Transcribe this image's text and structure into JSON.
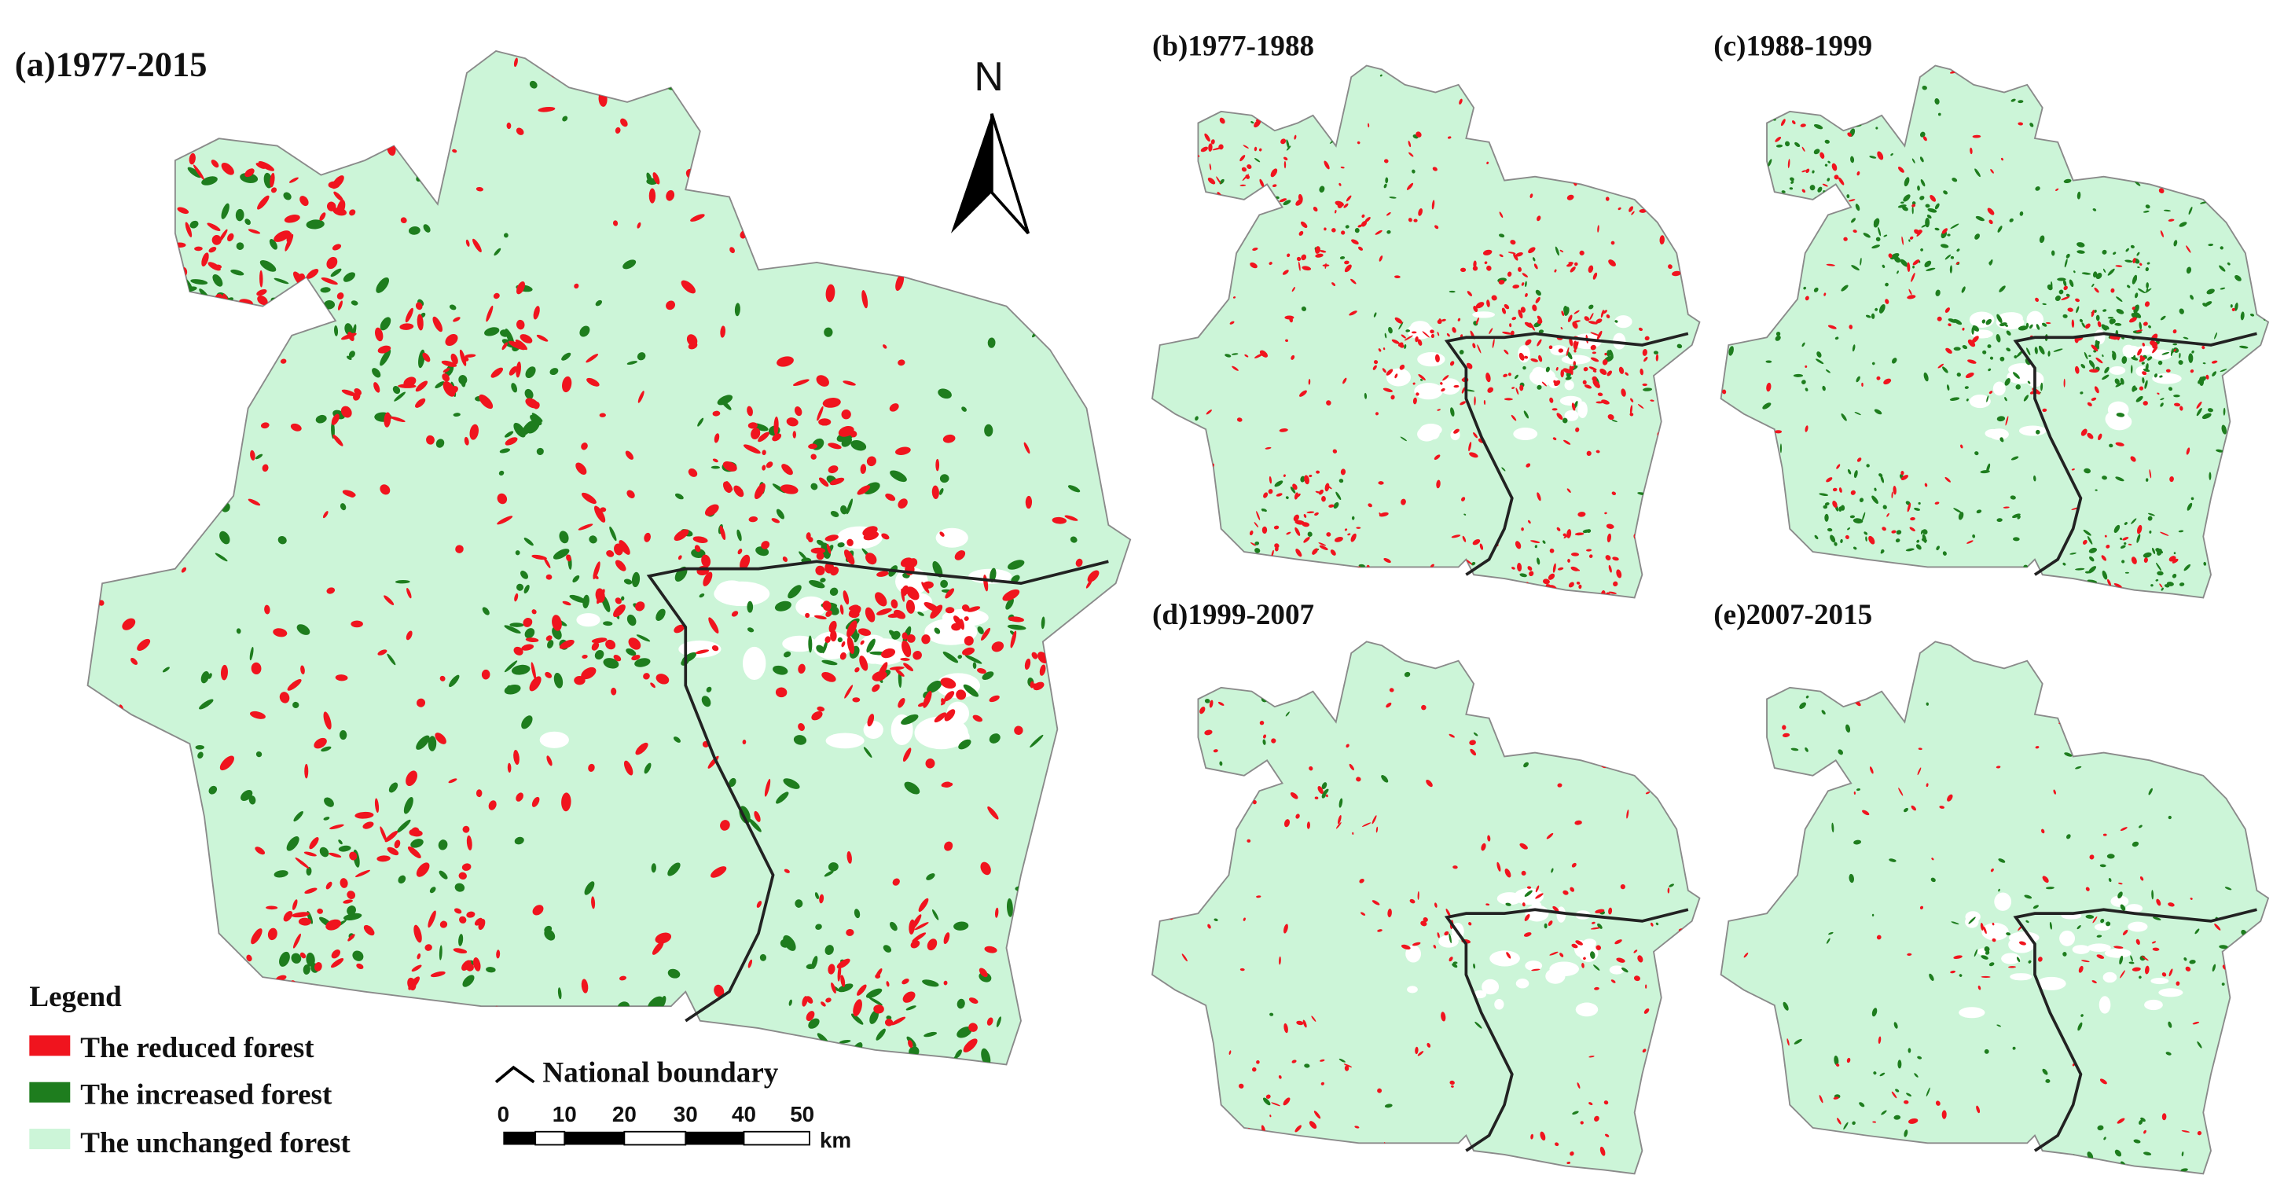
{
  "panels": [
    {
      "title": "(a)1977-2015"
    },
    {
      "title": "(b)1977-1988"
    },
    {
      "title": "(c)1988-1999"
    },
    {
      "title": "(d)1999-2007"
    },
    {
      "title": "(e)2007-2015"
    }
  ],
  "north_arrow": "N",
  "legend": {
    "title": "Legend",
    "items": [
      "The reduced forest",
      "The increased forest",
      "The unchanged forest"
    ]
  },
  "boundary_legend": "National boundary",
  "scale_bar": {
    "ticks": [
      0,
      10,
      20,
      30,
      40,
      50
    ],
    "unit": "km"
  }
}
